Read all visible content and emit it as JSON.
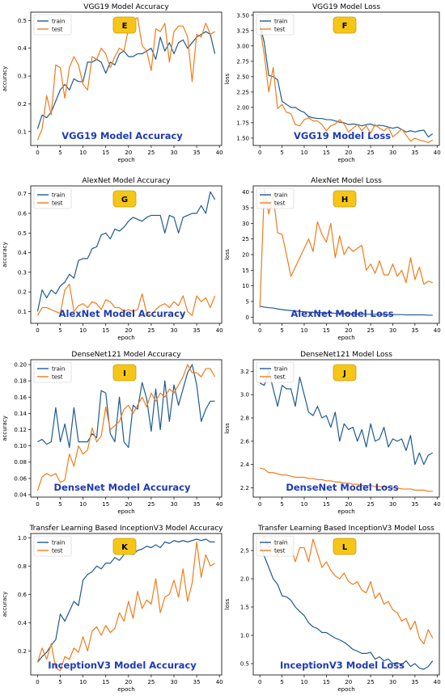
{
  "colors": {
    "train": "#1f5b8f",
    "test": "#f07c1c",
    "badge_fill": "#f5c518",
    "caption": "#1f3bb3"
  },
  "chart_data": [
    {
      "type": "line",
      "title": "VGG19 Model Accuracy",
      "xlabel": "epoch",
      "ylabel": "accuracy",
      "badge": "E",
      "caption": "VGG19 Model Accuracy",
      "xlim": [
        -1.5,
        40.5
      ],
      "ylim": [
        0.05,
        0.53
      ],
      "xticks": [
        0,
        5,
        10,
        15,
        20,
        25,
        30,
        35,
        40
      ],
      "yticks": [
        0.1,
        0.2,
        0.3,
        0.4,
        0.5
      ],
      "legend": "top-left",
      "series": [
        {
          "name": "train",
          "values": [
            0.11,
            0.16,
            0.15,
            0.17,
            0.21,
            0.25,
            0.27,
            0.25,
            0.29,
            0.28,
            0.28,
            0.35,
            0.35,
            0.36,
            0.35,
            0.31,
            0.35,
            0.34,
            0.38,
            0.39,
            0.37,
            0.37,
            0.38,
            0.38,
            0.39,
            0.4,
            0.36,
            0.44,
            0.39,
            0.42,
            0.38,
            0.42,
            0.43,
            0.4,
            0.42,
            0.44,
            0.45,
            0.46,
            0.45,
            0.38
          ]
        },
        {
          "name": "test",
          "values": [
            0.07,
            0.11,
            0.23,
            0.16,
            0.34,
            0.33,
            0.22,
            0.33,
            0.37,
            0.34,
            0.27,
            0.25,
            0.37,
            0.36,
            0.4,
            0.38,
            0.33,
            0.37,
            0.4,
            0.39,
            0.47,
            0.5,
            0.51,
            0.41,
            0.39,
            0.32,
            0.47,
            0.46,
            0.49,
            0.35,
            0.46,
            0.48,
            0.48,
            0.44,
            0.28,
            0.45,
            0.44,
            0.49,
            0.45,
            0.46
          ]
        }
      ]
    },
    {
      "type": "line",
      "title": "VGG19 Model Loss",
      "xlabel": "epoch",
      "ylabel": "loss",
      "badge": "F",
      "caption": "VGG19 Model Loss",
      "xlim": [
        -1.5,
        40.5
      ],
      "ylim": [
        1.38,
        3.55
      ],
      "xticks": [
        0,
        5,
        10,
        15,
        20,
        25,
        30,
        35,
        40
      ],
      "yticks": [
        1.5,
        1.75,
        2.0,
        2.25,
        2.5,
        2.75,
        3.0,
        3.25,
        3.5
      ],
      "legend": "top-left",
      "series": [
        {
          "name": "train",
          "values": [
            3.35,
            3.05,
            2.52,
            2.5,
            2.45,
            2.1,
            2.05,
            2.0,
            2.0,
            1.95,
            1.92,
            1.85,
            1.83,
            1.82,
            1.82,
            1.8,
            1.8,
            1.78,
            1.76,
            1.75,
            1.72,
            1.73,
            1.72,
            1.7,
            1.72,
            1.73,
            1.7,
            1.71,
            1.7,
            1.68,
            1.66,
            1.68,
            1.64,
            1.6,
            1.62,
            1.6,
            1.62,
            1.63,
            1.52,
            1.57
          ]
        },
        {
          "name": "test",
          "values": [
            3.32,
            2.85,
            2.25,
            2.65,
            1.98,
            2.05,
            1.92,
            1.9,
            1.72,
            1.7,
            1.8,
            1.83,
            1.78,
            1.78,
            1.72,
            1.62,
            1.7,
            1.73,
            1.8,
            1.73,
            1.6,
            1.66,
            1.72,
            1.62,
            1.7,
            1.58,
            1.72,
            1.66,
            1.62,
            1.68,
            1.52,
            1.58,
            1.65,
            1.55,
            1.45,
            1.5,
            1.47,
            1.45,
            1.43,
            1.47
          ]
        }
      ]
    },
    {
      "type": "line",
      "title": "AlexNet Model Accuracy",
      "xlabel": "epoch",
      "ylabel": "accuracy",
      "badge": "G",
      "caption": "AlexNet Model Accuracy",
      "xlim": [
        -1.5,
        40.5
      ],
      "ylim": [
        0.04,
        0.74
      ],
      "xticks": [
        0,
        5,
        10,
        15,
        20,
        25,
        30,
        35,
        40
      ],
      "yticks": [
        0.1,
        0.2,
        0.3,
        0.4,
        0.5,
        0.6,
        0.7
      ],
      "legend": "top-left",
      "series": [
        {
          "name": "train",
          "values": [
            0.1,
            0.21,
            0.17,
            0.21,
            0.19,
            0.23,
            0.25,
            0.29,
            0.27,
            0.36,
            0.37,
            0.37,
            0.42,
            0.43,
            0.49,
            0.5,
            0.47,
            0.52,
            0.51,
            0.53,
            0.56,
            0.58,
            0.57,
            0.56,
            0.58,
            0.59,
            0.59,
            0.59,
            0.5,
            0.59,
            0.58,
            0.5,
            0.58,
            0.59,
            0.6,
            0.6,
            0.64,
            0.6,
            0.71,
            0.67
          ]
        },
        {
          "name": "test",
          "values": [
            0.08,
            0.12,
            0.12,
            0.11,
            0.1,
            0.09,
            0.21,
            0.24,
            0.1,
            0.13,
            0.14,
            0.12,
            0.15,
            0.14,
            0.11,
            0.16,
            0.15,
            0.12,
            0.12,
            0.1,
            0.11,
            0.1,
            0.11,
            0.19,
            0.09,
            0.08,
            0.11,
            0.13,
            0.14,
            0.12,
            0.15,
            0.13,
            0.18,
            0.1,
            0.08,
            0.18,
            0.15,
            0.17,
            0.12,
            0.18
          ]
        }
      ]
    },
    {
      "type": "line",
      "title": "AlexNet Model Loss",
      "xlabel": "epoch",
      "ylabel": "loss",
      "badge": "H",
      "caption": "AlexNet Model Loss",
      "xlim": [
        -1.5,
        40.5
      ],
      "ylim": [
        -2,
        42
      ],
      "xticks": [
        0,
        5,
        10,
        15,
        20,
        25,
        30,
        35,
        40
      ],
      "yticks": [
        0,
        5,
        10,
        15,
        20,
        25,
        30,
        35,
        40
      ],
      "legend": "top-left",
      "series": [
        {
          "name": "train",
          "values": [
            3.5,
            3.2,
            3.0,
            2.9,
            2.6,
            2.4,
            2.2,
            2.1,
            1.9,
            1.8,
            1.7,
            1.6,
            1.5,
            1.5,
            1.4,
            1.3,
            1.3,
            1.2,
            1.2,
            1.1,
            1.1,
            1.0,
            1.0,
            1.0,
            0.9,
            0.9,
            0.9,
            0.9,
            0.8,
            0.8,
            0.8,
            0.8,
            0.8,
            0.7,
            0.7,
            0.7,
            0.7,
            0.7,
            0.6,
            0.6
          ]
        },
        {
          "name": "test",
          "values": [
            3.0,
            41.0,
            33.0,
            39.0,
            27.0,
            26.5,
            20.0,
            13.0,
            16.0,
            19.0,
            22.0,
            25.0,
            21.0,
            30.5,
            26.5,
            24.0,
            30.0,
            19.0,
            26.0,
            20.0,
            22.5,
            21.0,
            22.0,
            23.0,
            15.0,
            17.0,
            14.0,
            18.0,
            13.5,
            13.5,
            17.0,
            13.0,
            15.0,
            11.0,
            19.0,
            12.0,
            16.0,
            10.5,
            11.5,
            11.0
          ]
        }
      ]
    },
    {
      "type": "line",
      "title": "DenseNet121 Model Accuracy",
      "xlabel": "epoch",
      "ylabel": "accuracy",
      "badge": "I",
      "caption": "DenseNet Model Accuracy",
      "xlim": [
        -1.5,
        40.5
      ],
      "ylim": [
        0.037,
        0.206
      ],
      "xticks": [
        0,
        5,
        10,
        15,
        20,
        25,
        30,
        35,
        40
      ],
      "yticks": [
        0.04,
        0.06,
        0.08,
        0.1,
        0.12,
        0.14,
        0.16,
        0.18,
        0.2
      ],
      "legend": "top-left",
      "series": [
        {
          "name": "train",
          "values": [
            0.105,
            0.108,
            0.102,
            0.105,
            0.147,
            0.105,
            0.127,
            0.098,
            0.147,
            0.105,
            0.105,
            0.105,
            0.115,
            0.11,
            0.168,
            0.165,
            0.115,
            0.105,
            0.16,
            0.105,
            0.098,
            0.15,
            0.145,
            0.178,
            0.158,
            0.118,
            0.17,
            0.12,
            0.18,
            0.13,
            0.175,
            0.15,
            0.17,
            0.19,
            0.2,
            0.175,
            0.13,
            0.145,
            0.155,
            0.155
          ]
        },
        {
          "name": "test",
          "values": [
            0.045,
            0.062,
            0.066,
            0.063,
            0.066,
            0.055,
            0.058,
            0.09,
            0.075,
            0.1,
            0.09,
            0.095,
            0.122,
            0.105,
            0.112,
            0.148,
            0.12,
            0.125,
            0.13,
            0.145,
            0.15,
            0.14,
            0.15,
            0.16,
            0.148,
            0.165,
            0.155,
            0.165,
            0.16,
            0.17,
            0.165,
            0.175,
            0.185,
            0.2,
            0.19,
            0.19,
            0.185,
            0.195,
            0.195,
            0.185
          ]
        }
      ]
    },
    {
      "type": "line",
      "title": "DenseNet121 Model Loss",
      "xlabel": "epoch",
      "ylabel": "loss",
      "badge": "J",
      "caption": "DenseNet Model Loss",
      "xlim": [
        -1.5,
        40.5
      ],
      "ylim": [
        2.12,
        3.3
      ],
      "xticks": [
        0,
        5,
        10,
        15,
        20,
        25,
        30,
        35,
        40
      ],
      "yticks": [
        2.2,
        2.4,
        2.6,
        2.8,
        3.0,
        3.2
      ],
      "legend": "top-left",
      "series": [
        {
          "name": "train",
          "values": [
            3.1,
            3.08,
            3.2,
            3.05,
            2.9,
            3.08,
            3.05,
            3.05,
            2.9,
            3.15,
            3.0,
            2.85,
            2.82,
            2.9,
            2.8,
            2.82,
            2.72,
            2.85,
            2.6,
            2.75,
            2.7,
            2.72,
            2.6,
            2.7,
            2.55,
            2.75,
            2.6,
            2.62,
            2.72,
            2.55,
            2.62,
            2.6,
            2.62,
            2.52,
            2.65,
            2.4,
            2.5,
            2.4,
            2.48,
            2.5
          ]
        },
        {
          "name": "test",
          "values": [
            2.37,
            2.36,
            2.33,
            2.33,
            2.32,
            2.31,
            2.31,
            2.3,
            2.29,
            2.29,
            2.29,
            2.28,
            2.28,
            2.27,
            2.27,
            2.26,
            2.26,
            2.25,
            2.25,
            2.24,
            2.24,
            2.23,
            2.23,
            2.22,
            2.22,
            2.22,
            2.21,
            2.21,
            2.21,
            2.2,
            2.2,
            2.2,
            2.19,
            2.19,
            2.19,
            2.18,
            2.18,
            2.18,
            2.17,
            2.17
          ]
        }
      ]
    },
    {
      "type": "line",
      "title": "Transfer Learning Based InceptionV3 Model Accuracy",
      "xlabel": "epoch",
      "ylabel": "accuracy",
      "badge": "K",
      "caption": "InceptionV3 Model Accuracy",
      "xlim": [
        -1.5,
        40.5
      ],
      "ylim": [
        0.03,
        1.03
      ],
      "xticks": [
        0,
        5,
        10,
        15,
        20,
        25,
        30,
        35,
        40
      ],
      "yticks": [
        0.2,
        0.4,
        0.6,
        0.8,
        1.0
      ],
      "legend": "top-left",
      "series": [
        {
          "name": "train",
          "values": [
            0.12,
            0.16,
            0.19,
            0.24,
            0.28,
            0.46,
            0.41,
            0.48,
            0.55,
            0.52,
            0.7,
            0.74,
            0.76,
            0.8,
            0.78,
            0.82,
            0.82,
            0.86,
            0.84,
            0.88,
            0.9,
            0.88,
            0.91,
            0.92,
            0.94,
            0.93,
            0.95,
            0.93,
            0.97,
            0.96,
            0.98,
            0.97,
            0.98,
            0.97,
            0.98,
            0.99,
            0.98,
            0.99,
            0.97,
            0.97
          ]
        },
        {
          "name": "test",
          "values": [
            0.12,
            0.22,
            0.14,
            0.25,
            0.08,
            0.06,
            0.16,
            0.14,
            0.22,
            0.19,
            0.3,
            0.2,
            0.34,
            0.37,
            0.31,
            0.38,
            0.33,
            0.36,
            0.47,
            0.41,
            0.55,
            0.43,
            0.62,
            0.5,
            0.56,
            0.53,
            0.71,
            0.47,
            0.58,
            0.6,
            0.7,
            0.58,
            0.78,
            0.55,
            0.68,
            0.97,
            0.72,
            0.88,
            0.8,
            0.82
          ]
        }
      ]
    },
    {
      "type": "line",
      "title": "Transfer Learning Based InceptionV3 Model Loss",
      "xlabel": "epoch",
      "ylabel": "loss",
      "badge": "L",
      "caption": "InceptionV3 Model Loss",
      "xlim": [
        -1.5,
        40.5
      ],
      "ylim": [
        0.3,
        2.8
      ],
      "xticks": [
        0,
        5,
        10,
        15,
        20,
        25,
        30,
        35,
        40
      ],
      "yticks": [
        0.5,
        1.0,
        1.5,
        2.0,
        2.5
      ],
      "legend": "top-left",
      "series": [
        {
          "name": "train",
          "values": [
            2.6,
            2.4,
            2.2,
            2.0,
            1.9,
            1.7,
            1.68,
            1.62,
            1.5,
            1.42,
            1.35,
            1.22,
            1.15,
            1.12,
            1.05,
            1.05,
            1.0,
            0.95,
            0.92,
            0.88,
            0.82,
            0.75,
            0.72,
            0.68,
            0.68,
            0.7,
            0.58,
            0.62,
            0.55,
            0.58,
            0.5,
            0.52,
            0.48,
            0.55,
            0.45,
            0.5,
            0.42,
            0.4,
            0.45,
            0.55
          ]
        },
        {
          "name": "test",
          "values": [
            2.6,
            2.75,
            2.55,
            2.65,
            2.4,
            2.65,
            2.7,
            2.55,
            2.3,
            2.55,
            2.55,
            2.3,
            2.7,
            2.45,
            2.2,
            2.3,
            2.15,
            2.05,
            2.0,
            2.1,
            1.95,
            1.9,
            1.95,
            1.8,
            1.75,
            1.95,
            1.65,
            1.75,
            1.55,
            1.6,
            1.45,
            1.4,
            1.25,
            1.3,
            1.1,
            1.25,
            0.95,
            0.85,
            1.1,
            0.95
          ]
        }
      ]
    }
  ]
}
